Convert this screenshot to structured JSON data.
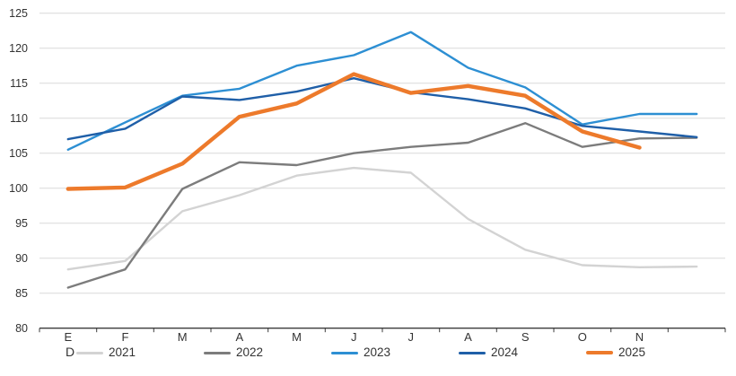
{
  "chart_data": {
    "type": "line",
    "title": "",
    "xlabel": "",
    "ylabel": "",
    "categories": [
      "E",
      "F",
      "M",
      "A",
      "M",
      "J",
      "J",
      "A",
      "S",
      "O",
      "N",
      "D"
    ],
    "x_axis": {
      "row1_labels": [
        "E",
        "F",
        "M",
        "A",
        "M",
        "J",
        "J",
        "A",
        "S",
        "O",
        "N",
        ""
      ],
      "row2_label_first": "D"
    },
    "ylim": [
      80,
      125
    ],
    "ytick_step": 5,
    "ytick_labels": [
      "80",
      "85",
      "90",
      "95",
      "100",
      "105",
      "110",
      "115",
      "120",
      "125"
    ],
    "grid": "horizontal",
    "legend_position": "bottom",
    "axis_color": "#3b3b3b",
    "gridline_color": "#d9d9d9",
    "label_color": "#333333",
    "series": [
      {
        "name": "2021",
        "color": "#d3d3d3",
        "width": 2.4,
        "values": [
          88.4,
          89.6,
          96.7,
          99.0,
          101.8,
          102.9,
          102.2,
          95.6,
          91.2,
          89.0,
          88.7,
          88.8
        ]
      },
      {
        "name": "2022",
        "color": "#7c7c7c",
        "width": 2.4,
        "values": [
          85.8,
          88.4,
          99.9,
          103.7,
          103.3,
          105.0,
          105.9,
          106.5,
          109.3,
          105.9,
          107.1,
          107.2
        ]
      },
      {
        "name": "2023",
        "color": "#2d8fd3",
        "width": 2.4,
        "values": [
          105.5,
          109.4,
          113.2,
          114.2,
          117.5,
          119.0,
          122.3,
          117.2,
          114.4,
          109.1,
          110.6,
          110.6
        ]
      },
      {
        "name": "2024",
        "color": "#1f5fa8",
        "width": 2.4,
        "values": [
          107.0,
          108.5,
          113.1,
          112.6,
          113.8,
          115.7,
          113.7,
          112.7,
          111.4,
          108.9,
          108.1,
          107.3
        ]
      },
      {
        "name": "2025",
        "color": "#ed7a2b",
        "width": 4.4,
        "values": [
          99.9,
          100.1,
          103.5,
          110.2,
          112.1,
          116.3,
          113.6,
          114.6,
          113.2,
          108.1,
          105.8,
          null
        ]
      }
    ]
  }
}
